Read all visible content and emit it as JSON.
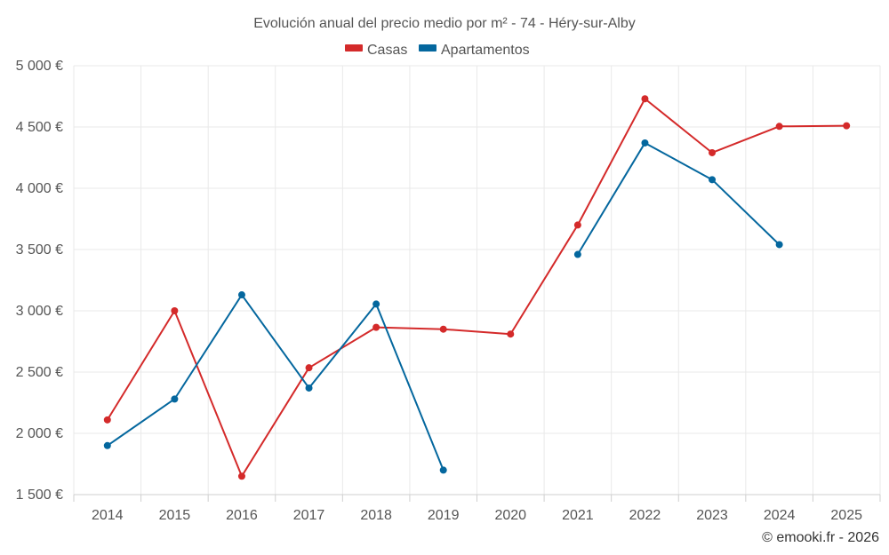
{
  "chart_data": {
    "type": "line",
    "title": "Evolución anual del precio medio por m² - 74 - Héry-sur-Alby",
    "categories": [
      "2014",
      "2015",
      "2016",
      "2017",
      "2018",
      "2019",
      "2020",
      "2021",
      "2022",
      "2023",
      "2024",
      "2025"
    ],
    "ylim": [
      1500,
      5000
    ],
    "yticks": [
      1500,
      2000,
      2500,
      3000,
      3500,
      4000,
      4500,
      5000
    ],
    "ytick_labels": [
      "1 500 €",
      "2 000 €",
      "2 500 €",
      "3 000 €",
      "3 500 €",
      "4 000 €",
      "4 500 €",
      "5 000 €"
    ],
    "grid": true,
    "legend_position": "top-center",
    "series": [
      {
        "name": "Casas",
        "color": "#d42a2a",
        "values": [
          2110,
          3000,
          1650,
          2535,
          2865,
          2850,
          2810,
          3700,
          4730,
          4290,
          4505,
          4510
        ]
      },
      {
        "name": "Apartamentos",
        "color": "#04679e",
        "values": [
          1900,
          2280,
          3130,
          2370,
          3055,
          1700,
          null,
          3460,
          4370,
          4070,
          3540,
          null
        ]
      }
    ]
  },
  "credit": "© emooki.fr - 2026"
}
